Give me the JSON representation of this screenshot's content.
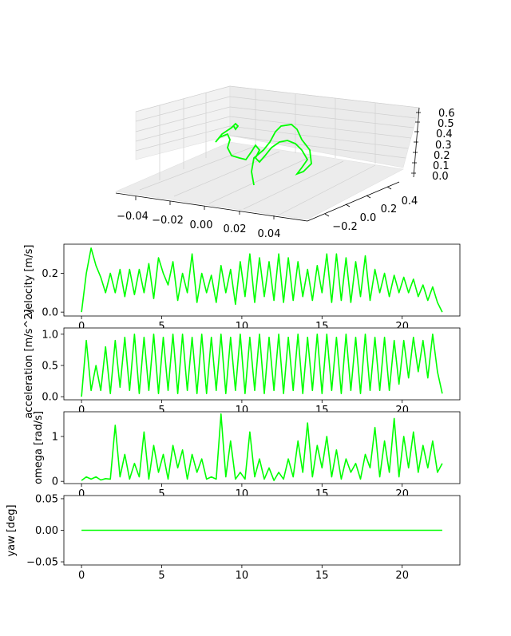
{
  "chart_data": [
    {
      "type": "line3d",
      "color": "#00ff00",
      "xticks": [
        "−0.04",
        "−0.02",
        "0.00",
        "0.02",
        "0.04"
      ],
      "yticks": [
        "−0.2",
        "0.0",
        "0.2",
        "0.4"
      ],
      "zticks": [
        "0.0",
        "0.1",
        "0.2",
        "0.3",
        "0.4",
        "0.5",
        "0.6"
      ],
      "xlim": [
        -0.05,
        0.05
      ],
      "ylim": [
        -0.3,
        0.5
      ],
      "zlim": [
        0.0,
        0.6
      ]
    },
    {
      "type": "line",
      "ylabel": "velocity [m/s]",
      "color": "#00ff00",
      "xlim": [
        -1.1,
        23.6
      ],
      "ylim": [
        -0.02,
        0.35
      ],
      "xticks": [
        "0",
        "5",
        "10",
        "15",
        "20"
      ],
      "yticks": [
        "0.0",
        "0.2"
      ],
      "x": [
        0,
        0.3,
        0.6,
        0.9,
        1.2,
        1.5,
        1.8,
        2.1,
        2.4,
        2.7,
        3.0,
        3.3,
        3.6,
        3.9,
        4.2,
        4.5,
        4.8,
        5.1,
        5.4,
        5.7,
        6.0,
        6.3,
        6.6,
        6.9,
        7.2,
        7.5,
        7.8,
        8.1,
        8.4,
        8.7,
        9.0,
        9.3,
        9.6,
        9.9,
        10.2,
        10.5,
        10.8,
        11.1,
        11.4,
        11.7,
        12.0,
        12.3,
        12.6,
        12.9,
        13.2,
        13.5,
        13.8,
        14.1,
        14.4,
        14.7,
        15.0,
        15.3,
        15.6,
        15.9,
        16.2,
        16.5,
        16.8,
        17.1,
        17.4,
        17.7,
        18.0,
        18.3,
        18.6,
        18.9,
        19.2,
        19.5,
        19.8,
        20.1,
        20.4,
        20.7,
        21.0,
        21.3,
        21.6,
        21.9,
        22.2,
        22.5
      ],
      "y": [
        0.0,
        0.2,
        0.33,
        0.24,
        0.18,
        0.1,
        0.2,
        0.1,
        0.22,
        0.08,
        0.22,
        0.09,
        0.22,
        0.1,
        0.25,
        0.07,
        0.28,
        0.2,
        0.14,
        0.26,
        0.06,
        0.2,
        0.1,
        0.3,
        0.05,
        0.2,
        0.1,
        0.19,
        0.05,
        0.24,
        0.1,
        0.22,
        0.04,
        0.26,
        0.08,
        0.3,
        0.05,
        0.28,
        0.08,
        0.26,
        0.06,
        0.3,
        0.05,
        0.28,
        0.06,
        0.26,
        0.08,
        0.22,
        0.06,
        0.24,
        0.1,
        0.3,
        0.05,
        0.3,
        0.06,
        0.28,
        0.05,
        0.26,
        0.08,
        0.29,
        0.06,
        0.22,
        0.1,
        0.2,
        0.08,
        0.19,
        0.1,
        0.18,
        0.1,
        0.17,
        0.08,
        0.14,
        0.06,
        0.13,
        0.05,
        0.0
      ]
    },
    {
      "type": "line",
      "ylabel": "acceleration [m/s^2]",
      "color": "#00ff00",
      "xlim": [
        -1.1,
        23.6
      ],
      "ylim": [
        -0.05,
        1.1
      ],
      "xticks": [
        "0",
        "5",
        "10",
        "15",
        "20"
      ],
      "yticks": [
        "0.0",
        "0.5",
        "1.0"
      ],
      "x": [
        0,
        0.3,
        0.6,
        0.9,
        1.2,
        1.5,
        1.8,
        2.1,
        2.4,
        2.7,
        3.0,
        3.3,
        3.6,
        3.9,
        4.2,
        4.5,
        4.8,
        5.1,
        5.4,
        5.7,
        6.0,
        6.3,
        6.6,
        6.9,
        7.2,
        7.5,
        7.8,
        8.1,
        8.4,
        8.7,
        9.0,
        9.3,
        9.6,
        9.9,
        10.2,
        10.5,
        10.8,
        11.1,
        11.4,
        11.7,
        12.0,
        12.3,
        12.6,
        12.9,
        13.2,
        13.5,
        13.8,
        14.1,
        14.4,
        14.7,
        15.0,
        15.3,
        15.6,
        15.9,
        16.2,
        16.5,
        16.8,
        17.1,
        17.4,
        17.7,
        18.0,
        18.3,
        18.6,
        18.9,
        19.2,
        19.5,
        19.8,
        20.1,
        20.4,
        20.7,
        21.0,
        21.3,
        21.6,
        21.9,
        22.2,
        22.5
      ],
      "y": [
        0.0,
        0.9,
        0.1,
        0.5,
        0.1,
        0.8,
        0.05,
        0.9,
        0.15,
        0.95,
        0.1,
        1.0,
        0.05,
        0.95,
        0.1,
        1.0,
        0.05,
        0.95,
        0.1,
        1.0,
        0.05,
        1.0,
        0.1,
        0.95,
        0.05,
        1.0,
        0.05,
        0.95,
        0.1,
        1.0,
        0.05,
        0.95,
        0.1,
        1.0,
        0.05,
        0.95,
        0.1,
        1.0,
        0.05,
        0.95,
        0.1,
        1.0,
        0.05,
        0.95,
        0.1,
        1.0,
        0.05,
        0.95,
        0.1,
        1.0,
        0.05,
        1.0,
        0.1,
        0.95,
        0.05,
        1.0,
        0.1,
        0.95,
        0.05,
        1.0,
        0.1,
        0.95,
        0.1,
        0.95,
        0.1,
        0.9,
        0.2,
        0.9,
        0.3,
        0.95,
        0.4,
        0.9,
        0.3,
        1.0,
        0.4,
        0.05
      ]
    },
    {
      "type": "line",
      "ylabel": "omega [rad/s]",
      "color": "#00ff00",
      "xlim": [
        -1.1,
        23.6
      ],
      "ylim": [
        -0.05,
        1.55
      ],
      "xticks": [
        "0",
        "5",
        "10",
        "15",
        "20"
      ],
      "yticks": [
        "0",
        "1"
      ],
      "x": [
        0,
        0.3,
        0.6,
        0.9,
        1.2,
        1.5,
        1.8,
        2.1,
        2.4,
        2.7,
        3.0,
        3.3,
        3.6,
        3.9,
        4.2,
        4.5,
        4.8,
        5.1,
        5.4,
        5.7,
        6.0,
        6.3,
        6.6,
        6.9,
        7.2,
        7.5,
        7.8,
        8.1,
        8.4,
        8.7,
        9.0,
        9.3,
        9.6,
        9.9,
        10.2,
        10.5,
        10.8,
        11.1,
        11.4,
        11.7,
        12.0,
        12.3,
        12.6,
        12.9,
        13.2,
        13.5,
        13.8,
        14.1,
        14.4,
        14.7,
        15.0,
        15.3,
        15.6,
        15.9,
        16.2,
        16.5,
        16.8,
        17.1,
        17.4,
        17.7,
        18.0,
        18.3,
        18.6,
        18.9,
        19.2,
        19.5,
        19.8,
        20.1,
        20.4,
        20.7,
        21.0,
        21.3,
        21.6,
        21.9,
        22.2,
        22.5
      ],
      "y": [
        0.02,
        0.1,
        0.05,
        0.1,
        0.03,
        0.06,
        0.05,
        1.25,
        0.1,
        0.6,
        0.05,
        0.4,
        0.1,
        1.1,
        0.05,
        0.8,
        0.2,
        0.6,
        0.05,
        0.8,
        0.3,
        0.7,
        0.05,
        0.6,
        0.2,
        0.5,
        0.05,
        0.1,
        0.05,
        1.5,
        0.1,
        0.9,
        0.05,
        0.2,
        0.05,
        1.1,
        0.1,
        0.5,
        0.05,
        0.3,
        0.02,
        0.2,
        0.05,
        0.5,
        0.1,
        0.9,
        0.2,
        1.3,
        0.1,
        0.8,
        0.3,
        1.0,
        0.1,
        0.7,
        0.05,
        0.5,
        0.2,
        0.4,
        0.05,
        0.6,
        0.3,
        1.2,
        0.1,
        0.9,
        0.2,
        1.4,
        0.1,
        1.0,
        0.3,
        1.1,
        0.2,
        0.8,
        0.3,
        0.9,
        0.2,
        0.4
      ]
    },
    {
      "type": "line",
      "ylabel": "yaw [deg]",
      "color": "#00ff00",
      "xlim": [
        -1.1,
        23.6
      ],
      "ylim": [
        -0.055,
        0.055
      ],
      "xticks": [
        "0",
        "5",
        "10",
        "15",
        "20"
      ],
      "yticks": [
        "−0.05",
        "0.00",
        "0.05"
      ],
      "x": [
        0,
        22.5
      ],
      "y": [
        0.0,
        0.0
      ]
    }
  ]
}
